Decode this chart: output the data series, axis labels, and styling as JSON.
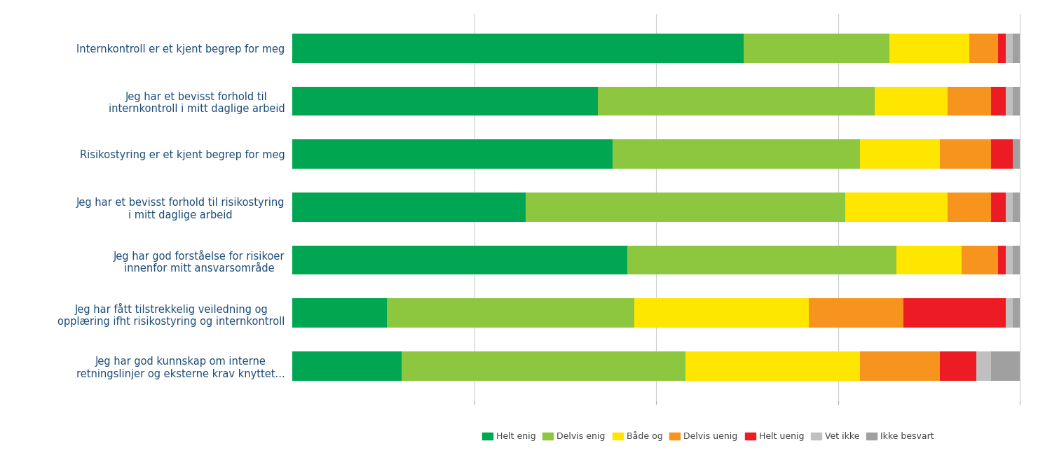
{
  "categories": [
    "Internkontroll er et kjent begrep for meg",
    "Jeg har et bevisst forhold til\ninternkontroll i mitt daglige arbeid",
    "Risikostyring er et kjent begrep for meg",
    "Jeg har et bevisst forhold til risikostyring\ni mitt daglige arbeid",
    "Jeg har god forståelse for risikoer\ninnenfor mitt ansvarsområde",
    "Jeg har fått tilstrekkelig veiledning og\nopplæring ifht risikostyring og internkontroll",
    "Jeg har god kunnskap om interne\nretningslinjer og eksterne krav knyttet..."
  ],
  "series": {
    "Helt enig": [
      62,
      42,
      44,
      32,
      46,
      13,
      15
    ],
    "Delvis enig": [
      20,
      38,
      34,
      44,
      37,
      34,
      39
    ],
    "Både og": [
      11,
      10,
      11,
      14,
      9,
      24,
      24
    ],
    "Delvis uenig": [
      4,
      6,
      7,
      6,
      5,
      13,
      11
    ],
    "Helt uenig": [
      1,
      2,
      3,
      2,
      1,
      14,
      5
    ],
    "Vet ikke": [
      1,
      1,
      0,
      1,
      1,
      1,
      2
    ],
    "Ikke besvart": [
      1,
      1,
      1,
      1,
      1,
      1,
      4
    ]
  },
  "colors": {
    "Helt enig": "#00A651",
    "Delvis enig": "#8DC63F",
    "Både og": "#FFE600",
    "Delvis uenig": "#F7941D",
    "Helt uenig": "#ED1C24",
    "Vet ikke": "#C0C0C0",
    "Ikke besvart": "#A0A0A0"
  },
  "bar_height": 0.55,
  "background_color": "#FFFFFF",
  "label_color": "#1F4E79",
  "label_fontsize": 10.5,
  "legend_fontsize": 9
}
